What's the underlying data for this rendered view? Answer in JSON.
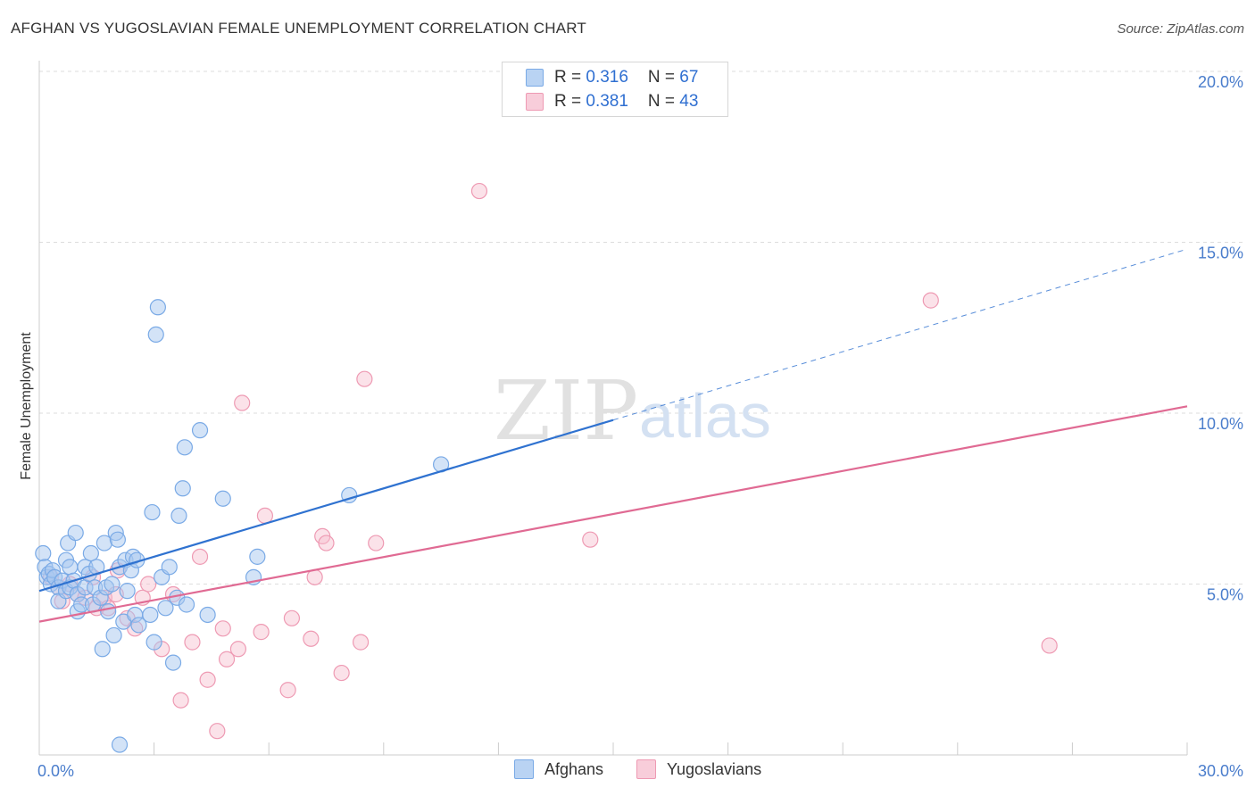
{
  "title": "AFGHAN VS YUGOSLAVIAN FEMALE UNEMPLOYMENT CORRELATION CHART",
  "source": "Source: ZipAtlas.com",
  "watermark": {
    "zip": "ZIP",
    "atlas": "atlas"
  },
  "legend": {
    "rows": [
      {
        "r_label": "R = ",
        "r_value": "0.316",
        "n_label": "N = ",
        "n_value": "67"
      },
      {
        "r_label": "R = ",
        "r_value": "0.381",
        "n_label": "N = ",
        "n_value": "43"
      }
    ]
  },
  "colors": {
    "afghans_fill": "#a8c8f0",
    "afghans_stroke": "#7aaae6",
    "afghans_line": "#2f72d0",
    "yugo_fill": "#f6bfcf",
    "yugo_stroke": "#ee9ab3",
    "yugo_line": "#e06a93",
    "grid": "#dddddd",
    "tick_text": "#4a7dcc"
  },
  "chart_data": {
    "type": "scatter",
    "title": "AFGHAN VS YUGOSLAVIAN FEMALE UNEMPLOYMENT CORRELATION CHART",
    "xlabel": "",
    "ylabel": "Female Unemployment",
    "xlim": [
      0,
      30
    ],
    "ylim": [
      0,
      20
    ],
    "x_tick_labels": [
      "0.0%",
      "30.0%"
    ],
    "y_ticks": [
      5,
      10,
      15,
      20
    ],
    "y_tick_labels": [
      "5.0%",
      "10.0%",
      "15.0%",
      "20.0%"
    ],
    "series": [
      {
        "name": "Afghans",
        "r": 0.316,
        "n": 67,
        "trend": {
          "x0": 0,
          "y0": 4.8,
          "x1": 15.0,
          "y1": 9.8,
          "dashed_to_x": 30.0,
          "dashed_to_y": 14.8
        },
        "points": [
          [
            0.1,
            5.9
          ],
          [
            0.15,
            5.5
          ],
          [
            0.2,
            5.2
          ],
          [
            0.25,
            5.3
          ],
          [
            0.3,
            5.0
          ],
          [
            0.35,
            5.4
          ],
          [
            0.4,
            5.2
          ],
          [
            0.5,
            4.9
          ],
          [
            0.5,
            4.5
          ],
          [
            0.6,
            5.1
          ],
          [
            0.7,
            5.7
          ],
          [
            0.7,
            4.8
          ],
          [
            0.75,
            6.2
          ],
          [
            0.8,
            4.9
          ],
          [
            0.8,
            5.5
          ],
          [
            0.9,
            5.1
          ],
          [
            0.95,
            6.5
          ],
          [
            1.0,
            4.2
          ],
          [
            1.0,
            4.7
          ],
          [
            1.1,
            4.4
          ],
          [
            1.2,
            5.5
          ],
          [
            1.2,
            4.9
          ],
          [
            1.3,
            5.3
          ],
          [
            1.35,
            5.9
          ],
          [
            1.4,
            4.4
          ],
          [
            1.45,
            4.9
          ],
          [
            1.5,
            5.5
          ],
          [
            1.6,
            4.6
          ],
          [
            1.65,
            3.1
          ],
          [
            1.7,
            6.2
          ],
          [
            1.75,
            4.9
          ],
          [
            1.8,
            4.2
          ],
          [
            1.9,
            5.0
          ],
          [
            1.95,
            3.5
          ],
          [
            2.0,
            6.5
          ],
          [
            2.05,
            6.3
          ],
          [
            2.1,
            5.5
          ],
          [
            2.2,
            3.9
          ],
          [
            2.25,
            5.7
          ],
          [
            2.3,
            4.8
          ],
          [
            2.4,
            5.4
          ],
          [
            2.45,
            5.8
          ],
          [
            2.5,
            4.1
          ],
          [
            2.55,
            5.7
          ],
          [
            2.6,
            3.8
          ],
          [
            2.9,
            4.1
          ],
          [
            2.95,
            7.1
          ],
          [
            3.0,
            3.3
          ],
          [
            3.05,
            12.3
          ],
          [
            3.1,
            13.1
          ],
          [
            3.2,
            5.2
          ],
          [
            3.3,
            4.3
          ],
          [
            3.4,
            5.5
          ],
          [
            3.5,
            2.7
          ],
          [
            3.6,
            4.6
          ],
          [
            3.65,
            7.0
          ],
          [
            3.75,
            7.8
          ],
          [
            3.8,
            9.0
          ],
          [
            3.85,
            4.4
          ],
          [
            4.2,
            9.5
          ],
          [
            4.4,
            4.1
          ],
          [
            4.8,
            7.5
          ],
          [
            5.7,
            5.8
          ],
          [
            5.6,
            5.2
          ],
          [
            2.1,
            0.3
          ],
          [
            8.1,
            7.6
          ],
          [
            10.5,
            8.5
          ]
        ]
      },
      {
        "name": "Yugoslavians",
        "r": 0.381,
        "n": 43,
        "trend": {
          "x0": 0,
          "y0": 3.9,
          "x1": 30.0,
          "y1": 10.2
        },
        "points": [
          [
            0.3,
            5.2
          ],
          [
            0.5,
            4.9
          ],
          [
            0.6,
            4.5
          ],
          [
            0.8,
            5.0
          ],
          [
            1.0,
            4.7
          ],
          [
            1.2,
            4.6
          ],
          [
            1.4,
            5.2
          ],
          [
            1.5,
            4.3
          ],
          [
            1.7,
            4.6
          ],
          [
            1.8,
            4.3
          ],
          [
            2.0,
            4.7
          ],
          [
            2.05,
            5.4
          ],
          [
            2.3,
            4.0
          ],
          [
            2.5,
            3.7
          ],
          [
            2.7,
            4.6
          ],
          [
            2.85,
            5.0
          ],
          [
            3.2,
            3.1
          ],
          [
            3.5,
            4.7
          ],
          [
            3.7,
            1.6
          ],
          [
            4.0,
            3.3
          ],
          [
            4.2,
            5.8
          ],
          [
            4.4,
            2.2
          ],
          [
            4.65,
            0.7
          ],
          [
            4.8,
            3.7
          ],
          [
            4.9,
            2.8
          ],
          [
            5.2,
            3.1
          ],
          [
            5.3,
            10.3
          ],
          [
            5.8,
            3.6
          ],
          [
            5.9,
            7.0
          ],
          [
            6.5,
            1.9
          ],
          [
            6.6,
            4.0
          ],
          [
            7.1,
            3.4
          ],
          [
            7.2,
            5.2
          ],
          [
            7.4,
            6.4
          ],
          [
            7.5,
            6.2
          ],
          [
            7.9,
            2.4
          ],
          [
            8.4,
            3.3
          ],
          [
            8.5,
            11.0
          ],
          [
            8.8,
            6.2
          ],
          [
            11.5,
            16.5
          ],
          [
            14.4,
            6.3
          ],
          [
            23.3,
            13.3
          ],
          [
            26.4,
            3.2
          ]
        ]
      }
    ],
    "legend_position": "top-center"
  },
  "bottom_legend": [
    {
      "label": "Afghans"
    },
    {
      "label": "Yugoslavians"
    }
  ]
}
